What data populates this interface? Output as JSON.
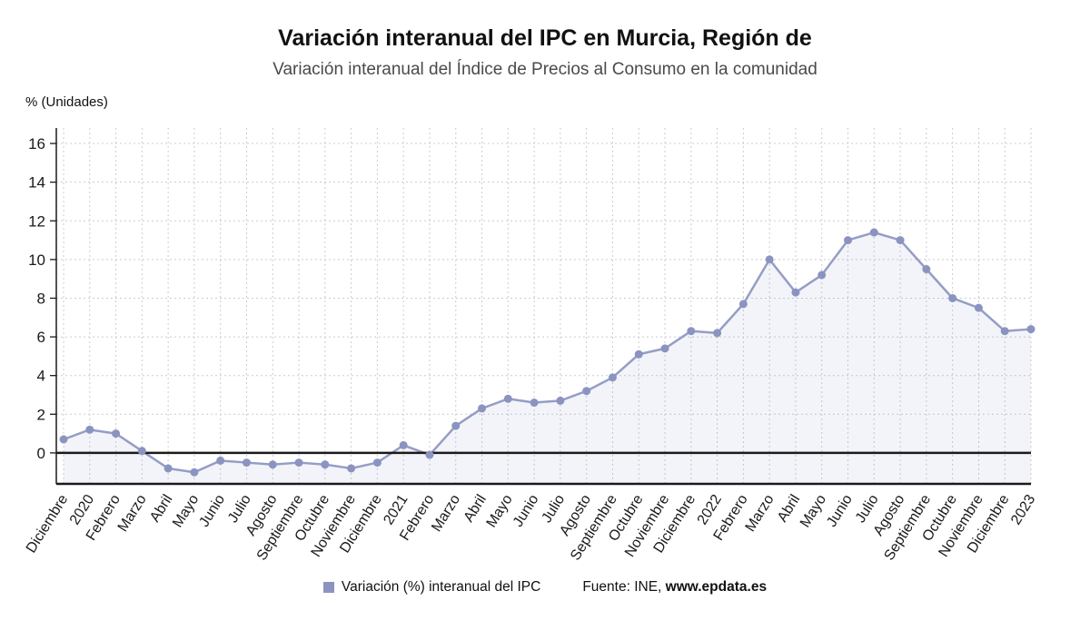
{
  "header": {
    "title": "Variación interanual del IPC en Murcia, Región de",
    "subtitle": "Variación interanual del Índice de Precios al Consumo en la comunidad"
  },
  "axis": {
    "unit_label": "% (Unidades)"
  },
  "legend": {
    "series_label": "Variación (%) interanual del IPC",
    "marker_color": "#8b94c0"
  },
  "source": {
    "prefix": "Fuente: INE, ",
    "site": "www.epdata.es"
  },
  "chart_data": {
    "type": "line",
    "title": "Variación interanual del IPC en Murcia, Región de",
    "subtitle": "Variación interanual del Índice de Precios al Consumo en la comunidad",
    "xlabel": "",
    "ylabel": "% (Unidades)",
    "grid": true,
    "legend_position": "bottom",
    "categories": [
      "Diciembre",
      "2020",
      "Febrero",
      "Marzo",
      "Abril",
      "Mayo",
      "Junio",
      "Julio",
      "Agosto",
      "Septiembre",
      "Octubre",
      "Noviembre",
      "Diciembre",
      "2021",
      "Febrero",
      "Marzo",
      "Abril",
      "Mayo",
      "Junio",
      "Julio",
      "Agosto",
      "Septiembre",
      "Octubre",
      "Noviembre",
      "Diciembre",
      "2022",
      "Febrero",
      "Marzo",
      "Abril",
      "Mayo",
      "Junio",
      "Julio",
      "Agosto",
      "Septiembre",
      "Octubre",
      "Noviembre",
      "Diciembre",
      "2023"
    ],
    "series": [
      {
        "name": "Variación (%) interanual del IPC",
        "values": [
          0.7,
          1.2,
          1.0,
          0.1,
          -0.8,
          -1.0,
          -0.4,
          -0.5,
          -0.6,
          -0.5,
          -0.6,
          -0.8,
          -0.5,
          0.4,
          -0.1,
          1.4,
          2.3,
          2.8,
          2.6,
          2.7,
          3.2,
          3.9,
          5.1,
          5.4,
          6.3,
          6.2,
          7.7,
          10.0,
          8.3,
          9.2,
          11.0,
          11.4,
          11.0,
          9.5,
          8.0,
          7.5,
          6.3,
          6.4
        ]
      }
    ],
    "ylim": [
      -1.6,
      16.8
    ],
    "yticks": [
      0,
      2,
      4,
      6,
      8,
      10,
      12,
      14,
      16
    ],
    "line_color": "#959dc5",
    "marker_color": "#8b94c0",
    "area_fill": "rgba(139,148,192,0.10)",
    "grid_color": "#cccccc",
    "axis_color": "#1a1a1a"
  }
}
